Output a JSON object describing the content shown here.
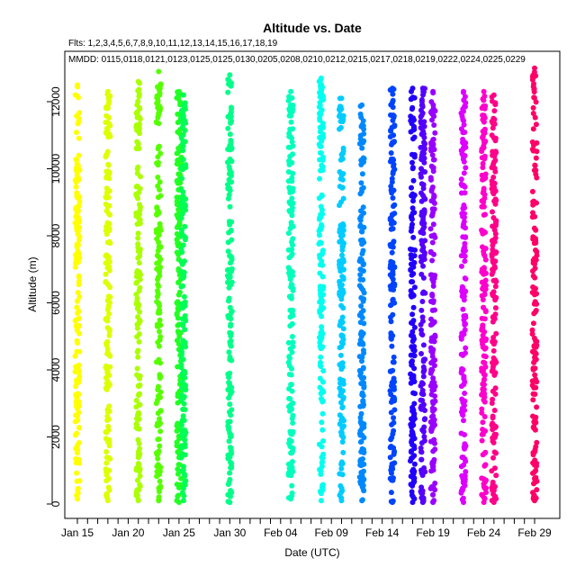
{
  "chart_data": {
    "type": "scatter",
    "title": "Altitude  vs. Date",
    "subtitle": "Flts: 1,2,3,4,5,6,7,8,9,10,11,12,13,14,15,16,17,18,19",
    "annotation": "MMDD: 0115,0118,0121,0123,0125,0125,0130,0205,0208,0210,0212,0215,0217,0218,0219,0222,0224,0225,0229",
    "xlabel": "Date (UTC)",
    "ylabel": "Altitude (m)",
    "x_ticks": [
      "Jan 15",
      "Jan 20",
      "Jan 25",
      "Jan 30",
      "Feb 04",
      "Feb 09",
      "Feb 14",
      "Feb 19",
      "Feb 24",
      "Feb 29"
    ],
    "y_ticks": [
      "0",
      "2000",
      "4000",
      "6000",
      "8000",
      "10000",
      "12000"
    ],
    "ylim": [
      -200,
      13000
    ],
    "grid": false,
    "legend": "none",
    "series": [
      {
        "date": "Jan 15",
        "ymin": 150,
        "ymax": 12500,
        "color": "#ffff00"
      },
      {
        "date": "Jan 18",
        "ymin": 100,
        "ymax": 12300,
        "color": "#ddff00"
      },
      {
        "date": "Jan 21",
        "ymin": 100,
        "ymax": 12600,
        "color": "#aaff00"
      },
      {
        "date": "Jan 23",
        "ymin": 100,
        "ymax": 12900,
        "color": "#55ff00"
      },
      {
        "date": "Jan 25",
        "ymin": 50,
        "ymax": 12300,
        "color": "#22ff22"
      },
      {
        "date": "Jan 25",
        "ymin": 100,
        "ymax": 12200,
        "color": "#00ff55"
      },
      {
        "date": "Jan 30",
        "ymin": 50,
        "ymax": 12800,
        "color": "#00ff88"
      },
      {
        "date": "Feb 05",
        "ymin": 150,
        "ymax": 12300,
        "color": "#00ffbb"
      },
      {
        "date": "Feb 08",
        "ymin": 100,
        "ymax": 12700,
        "color": "#00ffee"
      },
      {
        "date": "Feb 10",
        "ymin": 100,
        "ymax": 12100,
        "color": "#00ccff"
      },
      {
        "date": "Feb 12",
        "ymin": 100,
        "ymax": 11900,
        "color": "#0088ff"
      },
      {
        "date": "Feb 15",
        "ymin": 50,
        "ymax": 12400,
        "color": "#0044ff"
      },
      {
        "date": "Feb 17",
        "ymin": 50,
        "ymax": 12400,
        "color": "#2200ff"
      },
      {
        "date": "Feb 18",
        "ymin": 50,
        "ymax": 12400,
        "color": "#5500ff"
      },
      {
        "date": "Feb 19",
        "ymin": 50,
        "ymax": 12300,
        "color": "#9900ff"
      },
      {
        "date": "Feb 22",
        "ymin": 50,
        "ymax": 12300,
        "color": "#dd00ff"
      },
      {
        "date": "Feb 24",
        "ymin": 50,
        "ymax": 12300,
        "color": "#ff00cc"
      },
      {
        "date": "Feb 25",
        "ymin": 50,
        "ymax": 12200,
        "color": "#ff0088"
      },
      {
        "date": "Feb 29",
        "ymin": 100,
        "ymax": 13000,
        "color": "#ff0066"
      }
    ]
  }
}
